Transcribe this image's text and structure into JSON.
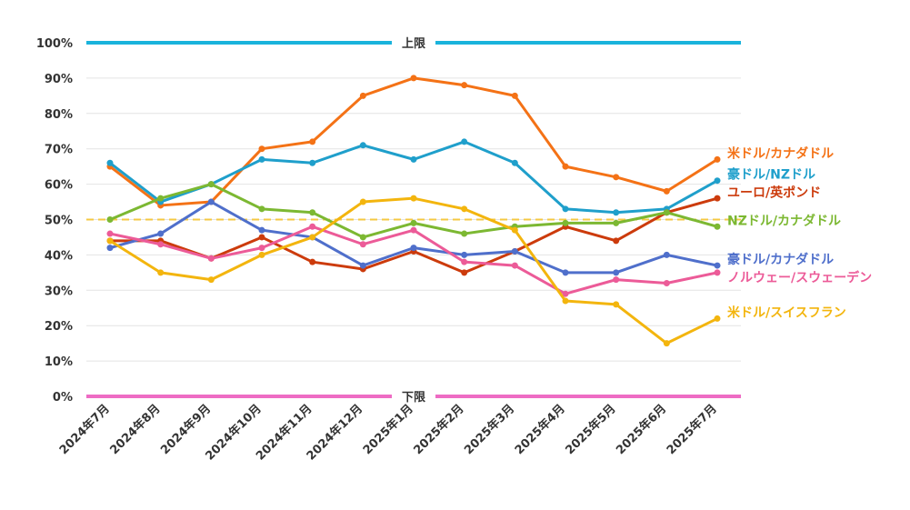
{
  "chart_data": {
    "type": "line",
    "categories": [
      "2024年7月",
      "2024年8月",
      "2024年9月",
      "2024年10月",
      "2024年11月",
      "2024年12月",
      "2025年1月",
      "2025年2月",
      "2025年3月",
      "2025年4月",
      "2025年5月",
      "2025年6月",
      "2025年7月"
    ],
    "ylim": [
      0,
      100
    ],
    "yticks": [
      0,
      10,
      20,
      30,
      40,
      50,
      60,
      70,
      80,
      90,
      100
    ],
    "ytick_labels": [
      "0%",
      "10%",
      "20%",
      "30%",
      "40%",
      "50%",
      "60%",
      "70%",
      "80%",
      "90%",
      "100%"
    ],
    "grid": true,
    "reference_lines": [
      {
        "value": 100,
        "label": "上限",
        "color": "#1ab3dc"
      },
      {
        "value": 0,
        "label": "下限",
        "color": "#ee6cc4"
      },
      {
        "value": 50,
        "label": "",
        "color": "#f5c842",
        "style": "dashed"
      }
    ],
    "series": [
      {
        "name": "米ドル/カナダドル",
        "color": "#f47216",
        "values": [
          65,
          54,
          55,
          70,
          72,
          85,
          90,
          88,
          85,
          65,
          62,
          58,
          67
        ]
      },
      {
        "name": "豪ドル/NZドル",
        "color": "#1f9fcb",
        "values": [
          66,
          55,
          60,
          67,
          66,
          71,
          67,
          72,
          66,
          53,
          52,
          53,
          61
        ]
      },
      {
        "name": "ユーロ/英ポンド",
        "color": "#cc3b0c",
        "values": [
          44,
          44,
          39,
          45,
          38,
          36,
          41,
          35,
          41,
          48,
          44,
          52,
          56
        ]
      },
      {
        "name": "NZドル/カナダドル",
        "color": "#7cb832",
        "values": [
          50,
          56,
          60,
          53,
          52,
          45,
          49,
          46,
          48,
          49,
          49,
          52,
          48
        ]
      },
      {
        "name": "豪ドル/カナダドル",
        "color": "#4f6fcb",
        "values": [
          42,
          46,
          55,
          47,
          45,
          37,
          42,
          40,
          41,
          35,
          35,
          40,
          37
        ]
      },
      {
        "name": "ノルウェー/スウェーデン",
        "color": "#ec5b98",
        "values": [
          46,
          43,
          39,
          42,
          48,
          43,
          47,
          38,
          37,
          29,
          33,
          32,
          35
        ]
      },
      {
        "name": "米ドル/スイスフラン",
        "color": "#f3b50e",
        "values": [
          44,
          35,
          33,
          40,
          45,
          55,
          56,
          53,
          47,
          27,
          26,
          15,
          22
        ]
      }
    ]
  }
}
